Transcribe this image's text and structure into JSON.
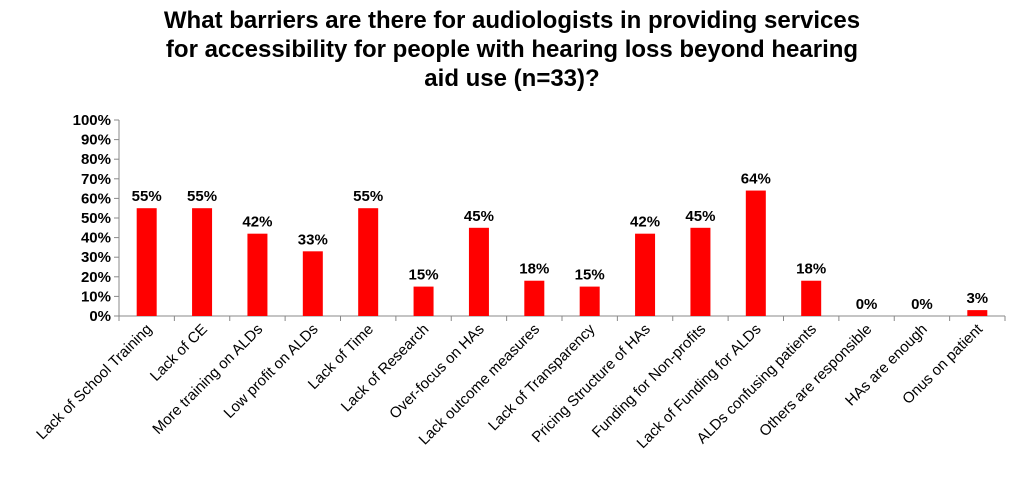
{
  "chart_data": {
    "type": "bar",
    "title": "What barriers are there for audiologists in providing services\nfor accessibility for people with hearing loss beyond hearing\naid use (n=33)?",
    "categories": [
      "Lack of School Training",
      "Lack of CE",
      "More training on ALDs",
      "Low profit on ALDs",
      "Lack of Time",
      "Lack of Research",
      "Over-focus on HAs",
      "Lack outcome measures",
      "Lack of Transparency",
      "Pricing Structure of HAs",
      "Funding for Non-profits",
      "Lack of Funding for ALDs",
      "ALDs confusing patients",
      "Others are responsible",
      "HAs are enough",
      "Onus on patient"
    ],
    "values": [
      55,
      55,
      42,
      33,
      55,
      15,
      45,
      18,
      15,
      42,
      45,
      64,
      18,
      0,
      0,
      3
    ],
    "data_labels": [
      "55%",
      "55%",
      "42%",
      "33%",
      "55%",
      "15%",
      "45%",
      "18%",
      "15%",
      "42%",
      "45%",
      "64%",
      "18%",
      "0%",
      "0%",
      "3%"
    ],
    "y_ticks": [
      "0%",
      "10%",
      "20%",
      "30%",
      "40%",
      "50%",
      "60%",
      "70%",
      "80%",
      "90%",
      "100%"
    ],
    "ylim": [
      0,
      100
    ],
    "xlabel": "",
    "ylabel": "",
    "grid": false,
    "bar_color": "#FF0000"
  }
}
